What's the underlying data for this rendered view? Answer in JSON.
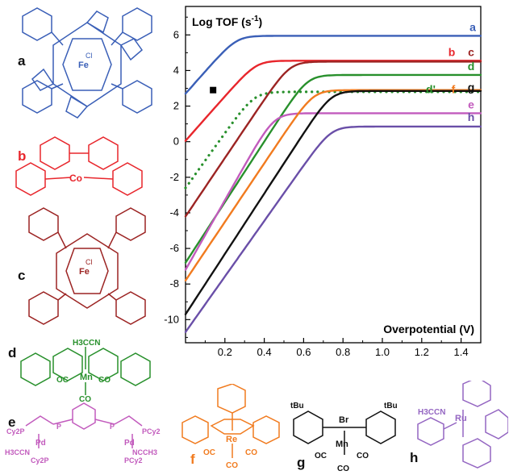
{
  "chart_data": {
    "type": "line",
    "title": "",
    "ylabel": "Log TOF (s",
    "ylabel_sup": "-1",
    "ylabel_tail": ")",
    "xlabel": "Overpotential (V)",
    "xlim": [
      0,
      1.5
    ],
    "ylim": [
      -11.3,
      7.6
    ],
    "x_ticks": [
      0.2,
      0.4,
      0.6,
      0.8,
      1.0,
      1.2,
      1.4
    ],
    "x_tick_labels": [
      "0.2",
      "0.4",
      "0.6",
      "0.8",
      "1.0",
      "1.2",
      "1.4"
    ],
    "y_ticks": [
      6,
      4,
      2,
      0,
      -2,
      -4,
      -6,
      -8,
      -10
    ],
    "y_tick_labels": [
      "6",
      "4",
      "2",
      "0",
      "-2",
      "-4",
      "-6",
      "-8",
      "-10"
    ],
    "series": [
      {
        "name": "a",
        "color": "#3a5fb7",
        "start": [
          0.0,
          2.7
        ],
        "plateau": 5.95,
        "knee": 0.26,
        "dashed": false
      },
      {
        "name": "b",
        "color": "#e8262c",
        "start": [
          0.0,
          0.05
        ],
        "plateau": 4.55,
        "knee": 0.36,
        "dashed": false
      },
      {
        "name": "c",
        "color": "#9c2423",
        "start": [
          0.0,
          -4.2
        ],
        "plateau": 4.5,
        "knee": 0.53,
        "dashed": false
      },
      {
        "name": "d",
        "color": "#28902c",
        "start": [
          0.0,
          -6.8
        ],
        "plateau": 3.75,
        "knee": 0.62,
        "dashed": false
      },
      {
        "name": "d'",
        "color": "#28902c",
        "start": [
          0.0,
          -2.6
        ],
        "plateau": 2.8,
        "knee": 0.35,
        "dashed": true
      },
      {
        "name": "e",
        "color": "#c25bbd",
        "start": [
          0.0,
          -7.2
        ],
        "plateau": 1.6,
        "knee": 0.45,
        "dashed": false
      },
      {
        "name": "f",
        "color": "#f17b1f",
        "start": [
          0.0,
          -7.8
        ],
        "plateau": 2.9,
        "knee": 0.65,
        "dashed": false
      },
      {
        "name": "g",
        "color": "#111111",
        "start": [
          0.0,
          -9.7
        ],
        "plateau": 2.85,
        "knee": 0.74,
        "dashed": false
      },
      {
        "name": "h",
        "color": "#6a4fa8",
        "start": [
          0.0,
          -10.7
        ],
        "plateau": 0.85,
        "knee": 0.74,
        "dashed": false
      }
    ],
    "series_labels": [
      {
        "text": "a",
        "color": "#3a5fb7"
      },
      {
        "text": "b",
        "color": "#e8262c"
      },
      {
        "text": "c",
        "color": "#9c2423"
      },
      {
        "text": "d",
        "color": "#28902c"
      },
      {
        "text": "d'",
        "color": "#28902c"
      },
      {
        "text": "f",
        "color": "#f17b1f"
      },
      {
        "text": "g",
        "color": "#111111"
      },
      {
        "text": "e",
        "color": "#c25bbd"
      },
      {
        "text": "h",
        "color": "#6a4fa8"
      }
    ],
    "marker": {
      "x": 0.14,
      "y": 2.9,
      "shape": "square",
      "color": "#000000"
    }
  },
  "molecules": [
    {
      "letter": "a",
      "color": "#3a5fb7",
      "center_label": "Fe",
      "axial_label": "Cl"
    },
    {
      "letter": "b",
      "color": "#e8262c",
      "center_label": "Co"
    },
    {
      "letter": "c",
      "color": "#9c2423",
      "center_label": "Fe",
      "axial_label": "Cl"
    },
    {
      "letter": "d",
      "color": "#28902c",
      "center_label": "Mn",
      "top_label": "H3CCN",
      "ligand_left": "OC",
      "ligand_right": "CO",
      "ligand_bottom": "CO"
    },
    {
      "letter": "e",
      "color": "#c25bbd",
      "left_metal": "Pd",
      "right_metal": "Pd",
      "left_ligand": "H3CCN",
      "right_ligand": "NCCH3",
      "cy_labels": [
        "Cy2P",
        "P",
        "P",
        "PCy2",
        "Cy2P",
        "PCy2"
      ]
    },
    {
      "letter": "f",
      "color": "#f17b1f",
      "center_label": "Re",
      "ligand_left": "OC",
      "ligand_right": "CO",
      "ligand_bottom": "CO"
    },
    {
      "letter": "g",
      "color": "#111111",
      "center_label": "Mn",
      "axial_label": "Br",
      "tbu_left": "tBu",
      "tbu_right": "tBu",
      "ligand_left": "OC",
      "ligand_right": "CO",
      "ligand_bottom": "CO"
    },
    {
      "letter": "h",
      "color": "#9466c2",
      "center_label": "Ru",
      "ligand_left": "H3CCN"
    }
  ]
}
